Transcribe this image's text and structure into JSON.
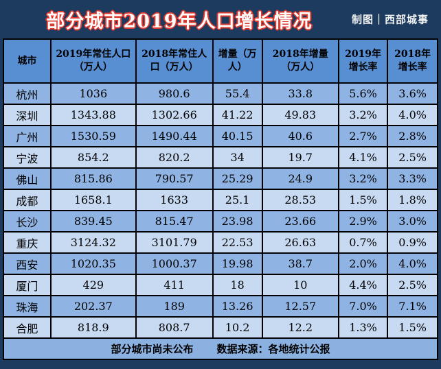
{
  "title": "部分城市2019年人口增长情况",
  "credit": "制图｜西部城事",
  "colors": {
    "background_navy": "#1c3b5f",
    "title_red": "#e0392e",
    "title_core_white": "#fdfdfd",
    "header_blue": "#588ed2",
    "row_medium_blue": "#8fb3e2",
    "row_light_blue": "#c7daf1",
    "footer_blue": "#8ab1e0",
    "grid_black": "#000000"
  },
  "table": {
    "headers": [
      "城市",
      "2019年常住人口（万人）",
      "2018年常住人口（万人）",
      "增量（万人）",
      "2018年增量（万人）",
      "2019年增长率",
      "2018年增长率"
    ],
    "rows": [
      [
        "杭州",
        "1036",
        "980.6",
        "55.4",
        "33.8",
        "5.6%",
        "3.6%"
      ],
      [
        "深圳",
        "1343.88",
        "1302.66",
        "41.22",
        "49.83",
        "3.2%",
        "4.0%"
      ],
      [
        "广州",
        "1530.59",
        "1490.44",
        "40.15",
        "40.6",
        "2.7%",
        "2.8%"
      ],
      [
        "宁波",
        "854.2",
        "820.2",
        "34",
        "19.7",
        "4.1%",
        "2.5%"
      ],
      [
        "佛山",
        "815.86",
        "790.57",
        "25.29",
        "24.9",
        "3.2%",
        "3.3%"
      ],
      [
        "成都",
        "1658.1",
        "1633",
        "25.1",
        "28.53",
        "1.5%",
        "1.8%"
      ],
      [
        "长沙",
        "839.45",
        "815.47",
        "23.98",
        "23.66",
        "2.9%",
        "3.0%"
      ],
      [
        "重庆",
        "3124.32",
        "3101.79",
        "22.53",
        "26.63",
        "0.7%",
        "0.9%"
      ],
      [
        "西安",
        "1020.35",
        "1000.37",
        "19.98",
        "38.7",
        "2.0%",
        "4.0%"
      ],
      [
        "厦门",
        "429",
        "411",
        "18",
        "10",
        "4.4%",
        "2.5%"
      ],
      [
        "珠海",
        "202.37",
        "189",
        "13.26",
        "12.57",
        "7.0%",
        "7.1%"
      ],
      [
        "合肥",
        "818.9",
        "808.7",
        "10.2",
        "12.2",
        "1.3%",
        "1.5%"
      ]
    ]
  },
  "footer": {
    "note": "部分城市尚未公布",
    "source": "数据来源：各地统计公报"
  }
}
